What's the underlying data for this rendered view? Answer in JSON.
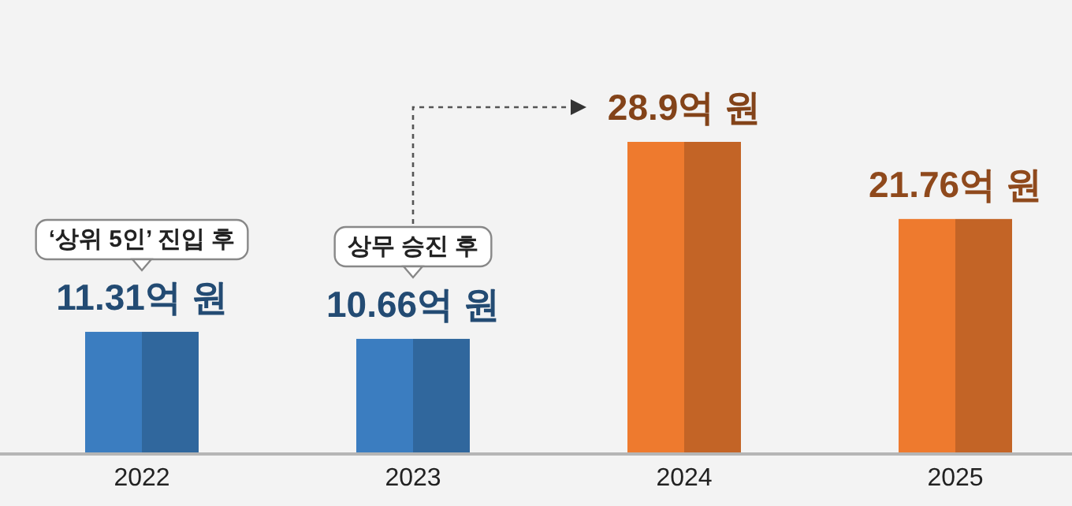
{
  "chart_data": {
    "type": "bar",
    "categories": [
      "2022",
      "2023",
      "2024",
      "2025"
    ],
    "values": [
      11.31,
      10.66,
      28.9,
      21.76
    ],
    "colors": [
      "#3b7dc0",
      "#3b7dc0",
      "#ee7a2e",
      "#ee7a2e"
    ],
    "value_labels": [
      "11.31억 원",
      "10.66억 원",
      "28.9억 원",
      "21.76억 원"
    ],
    "annotations": [
      "‘상위 5인’ 진입 후",
      "상무 승진 후"
    ]
  }
}
